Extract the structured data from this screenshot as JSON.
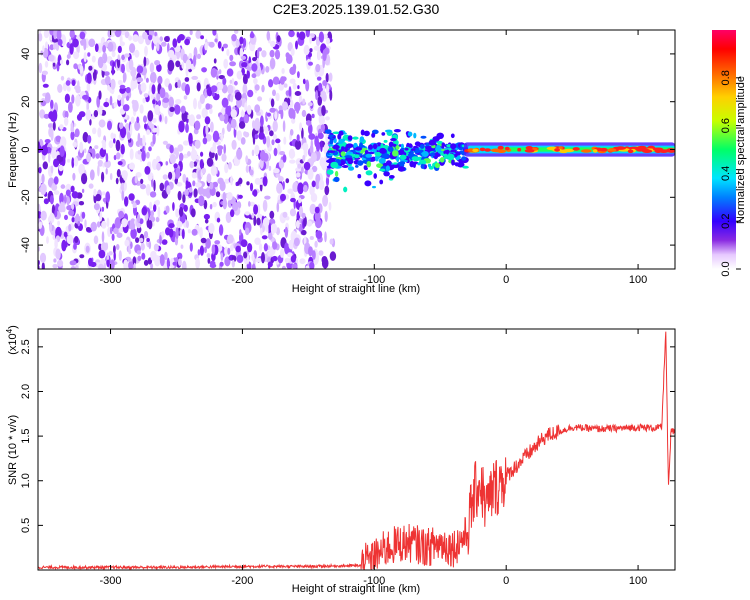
{
  "title": "C2E3.2025.139.01.52.G30",
  "top_panel": {
    "xlabel": "Height of straight line (km)",
    "ylabel": "Frequency (Hz)",
    "x_ticks": [
      "-300",
      "-200",
      "-100",
      "0",
      "100"
    ],
    "y_ticks": [
      "40",
      "20",
      "0",
      "-20",
      "-40"
    ],
    "colorbar": {
      "label": "Normalized spectral amplitude",
      "ticks": [
        "0.0",
        "0.2",
        "0.4",
        "0.6",
        "0.8"
      ],
      "colors": [
        "#ffffff",
        "#e6c8ff",
        "#8a2be2",
        "#3300ff",
        "#0080ff",
        "#00e5ff",
        "#00ff66",
        "#c8ff00",
        "#ffd000",
        "#ff6600",
        "#ff0000",
        "#ff0066"
      ]
    }
  },
  "bottom_panel": {
    "xlabel": "Height of straight line (km)",
    "ylabel": "SNR (10 * v/v)",
    "multiplier": "(x10",
    "multiplier_exp": "4",
    "x_ticks": [
      "-300",
      "-200",
      "-100",
      "0",
      "100"
    ],
    "y_ticks": [
      "2.5",
      "2.0",
      "1.5",
      "1.0",
      "0.5"
    ],
    "line_color": "#ee3333"
  },
  "chart_data": [
    {
      "type": "heatmap",
      "xlabel": "Height of straight line (km)",
      "ylabel": "Frequency (Hz)",
      "xlim": [
        -355,
        128
      ],
      "ylim": [
        -50,
        50
      ],
      "colorbar_label": "Normalized spectral amplitude",
      "colorbar_range": [
        0,
        1
      ],
      "regions": [
        {
          "x_range": [
            -355,
            -135
          ],
          "y_range": [
            -50,
            50
          ],
          "amplitude": "scattered 0.0-0.15 noise"
        },
        {
          "x_range": [
            -135,
            -30
          ],
          "y_range": [
            -20,
            15
          ],
          "amplitude": "0.1-0.4 patchy signal near 0 Hz"
        },
        {
          "x_range": [
            -30,
            128
          ],
          "y_range": [
            -3,
            3
          ],
          "amplitude": "0.3-1.0 narrow band at 0 Hz"
        }
      ]
    },
    {
      "type": "line",
      "xlabel": "Height of straight line (km)",
      "ylabel": "SNR (10 * v/v)",
      "xlim": [
        -355,
        128
      ],
      "ylim": [
        0,
        27000
      ],
      "series": [
        {
          "x": [
            -355,
            -300,
            -250,
            -200,
            -150,
            -110,
            -100,
            -90,
            -80,
            -70,
            -60,
            -50,
            -40,
            -30,
            -25,
            -20,
            -15,
            -10,
            0,
            10,
            20,
            30,
            50,
            70,
            90,
            100,
            110,
            118,
            121,
            123,
            125,
            128
          ],
          "y": [
            300,
            300,
            300,
            400,
            400,
            500,
            1500,
            2500,
            3000,
            3000,
            2500,
            3000,
            2500,
            4000,
            8000,
            10000,
            7000,
            9000,
            10500,
            12000,
            13500,
            15000,
            16000,
            15800,
            15900,
            16000,
            15900,
            16000,
            27000,
            9000,
            15500,
            15500
          ]
        }
      ]
    }
  ]
}
